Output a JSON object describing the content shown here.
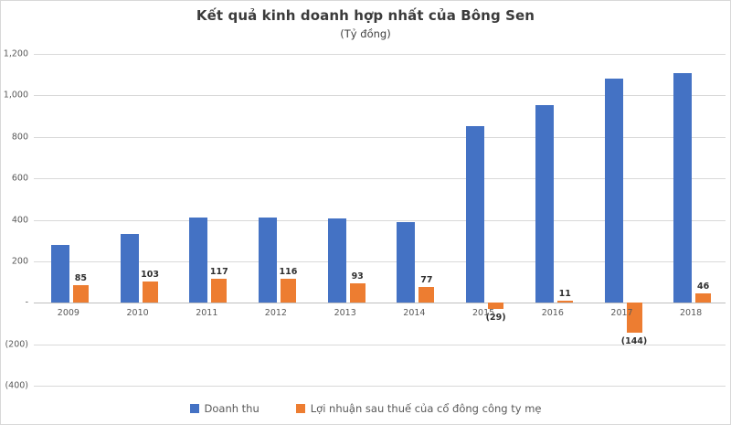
{
  "chart_data": {
    "type": "bar",
    "title": "Kết quả kinh doanh hợp nhất của Bông Sen",
    "subtitle": "(Tỷ đồng)",
    "unit": "Tỷ đồng",
    "categories": [
      "2009",
      "2010",
      "2011",
      "2012",
      "2013",
      "2014",
      "2015",
      "2016",
      "2017",
      "2018"
    ],
    "series": [
      {
        "id": "doanh-thu",
        "name": "Doanh thu",
        "color": "#4472C4",
        "values": [
          280,
          330,
          410,
          410,
          408,
          388,
          850,
          955,
          1080,
          1108
        ],
        "show_labels": false,
        "labels": []
      },
      {
        "id": "loi-nhuan",
        "name": "Lợi nhuận sau thuế của cổ đông công ty mẹ",
        "color": "#ED7D31",
        "values": [
          85,
          103,
          117,
          116,
          93,
          77,
          -29,
          11,
          -144,
          46
        ],
        "show_labels": true,
        "labels": [
          "85",
          "103",
          "117",
          "116",
          "93",
          "77",
          "(29)",
          "11",
          "(144)",
          "46"
        ]
      }
    ],
    "ylim": [
      -400,
      1200
    ],
    "yticks": [
      {
        "value": 1200,
        "label": "1,200"
      },
      {
        "value": 1000,
        "label": "1,000"
      },
      {
        "value": 800,
        "label": "800"
      },
      {
        "value": 600,
        "label": "600"
      },
      {
        "value": 400,
        "label": "400"
      },
      {
        "value": 200,
        "label": "200"
      },
      {
        "value": 0,
        "label": "-"
      },
      {
        "value": -200,
        "label": "(200)"
      },
      {
        "value": -400,
        "label": "(400)"
      }
    ],
    "grid": true,
    "legend_position": "bottom",
    "colors": {
      "grid": "#D9D9D9",
      "axis": "#BFBFBF",
      "tick_text": "#595959",
      "title_text": "#3B3B3B",
      "value_label_text": "#2F2F2F"
    }
  }
}
